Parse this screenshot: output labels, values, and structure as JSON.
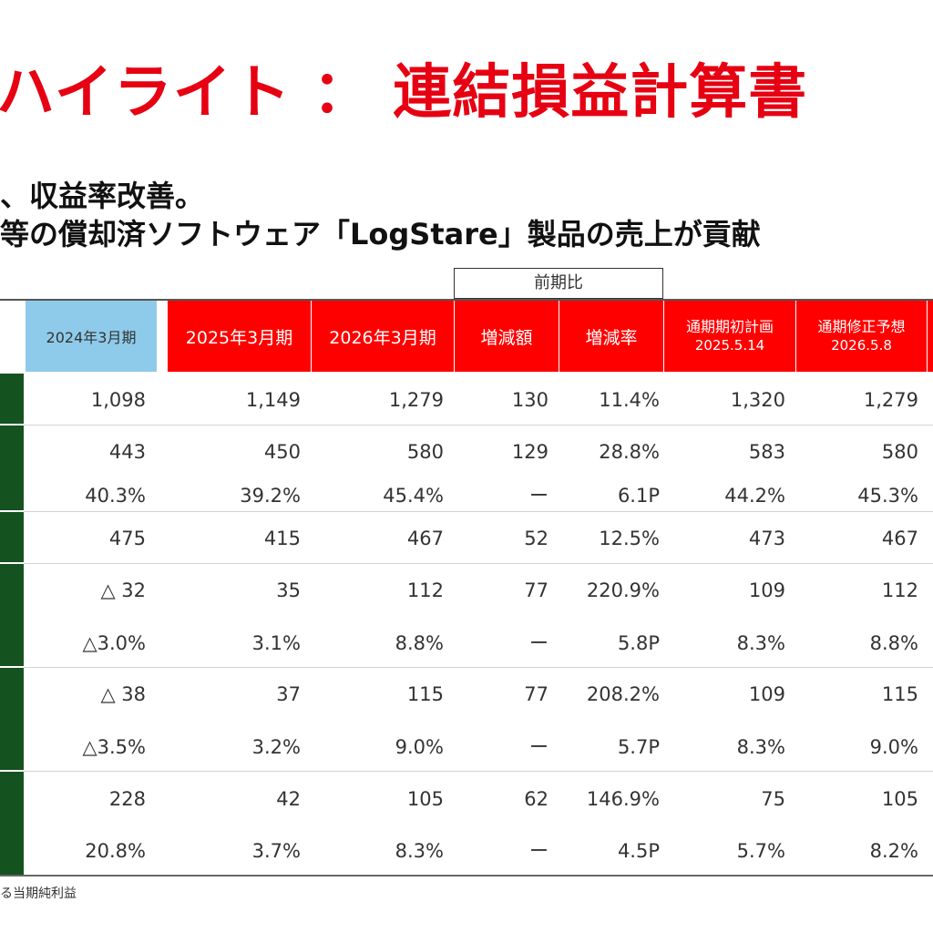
{
  "title": "ハイライト ： 連結損益計算書",
  "subtitle_lines": [
    "、収益率改善。",
    "等の償却済ソフトウェア「LogStare」製品の売上が貢献"
  ],
  "period_compare_label": "前期比",
  "headers": [
    "2024年3月期",
    "2025年3月期",
    "2026年3月期",
    "増減額",
    "増減率",
    [
      "通期期初計画",
      "2025.5.14"
    ],
    [
      "通期修正予想",
      "2026.5.8"
    ]
  ],
  "rows": [
    [
      "1,098",
      "1,149",
      "1,279",
      "130",
      "11.4%",
      "1,320",
      "1,279"
    ],
    [
      "443",
      "450",
      "580",
      "129",
      "28.8%",
      "583",
      "580"
    ],
    [
      "40.3%",
      "39.2%",
      "45.4%",
      "ー",
      "6.1P",
      "44.2%",
      "45.3%"
    ],
    [
      "475",
      "415",
      "467",
      "52",
      "12.5%",
      "473",
      "467"
    ],
    [
      "△ 32",
      "35",
      "112",
      "77",
      "220.9%",
      "109",
      "112"
    ],
    [
      "△3.0%",
      "3.1%",
      "8.8%",
      "ー",
      "5.8P",
      "8.3%",
      "8.8%"
    ],
    [
      "△ 38",
      "37",
      "115",
      "77",
      "208.2%",
      "109",
      "115"
    ],
    [
      "△3.5%",
      "3.2%",
      "9.0%",
      "ー",
      "5.7P",
      "8.3%",
      "9.0%"
    ],
    [
      "228",
      "42",
      "105",
      "62",
      "146.9%",
      "75",
      "105"
    ],
    [
      "20.8%",
      "3.7%",
      "8.3%",
      "ー",
      "4.5P",
      "5.7%",
      "8.2%"
    ]
  ],
  "footnote": "る当期純利益",
  "colors": {
    "title": "#e60012",
    "header_red": "#ff0000",
    "header_blue": "#8ecbea",
    "row_label_green": "#14521f"
  }
}
